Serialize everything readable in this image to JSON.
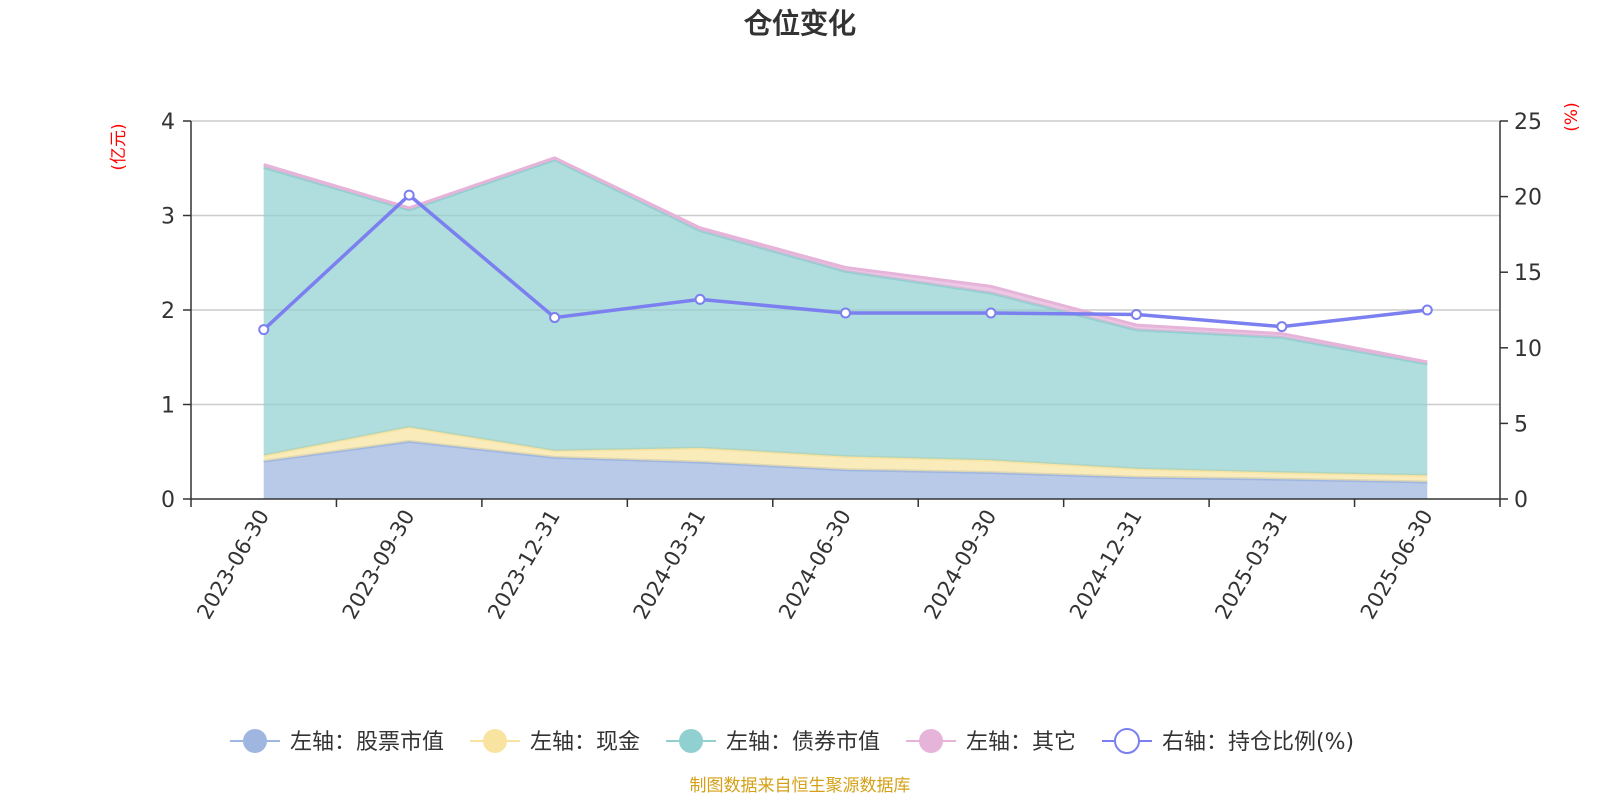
{
  "chart_data": {
    "type": "area",
    "title": "仓位变化",
    "left_axis_unit": "(亿元)",
    "right_axis_unit": "(%)",
    "categories": [
      "2023-06-30",
      "2023-09-30",
      "2023-12-31",
      "2024-03-31",
      "2024-06-30",
      "2024-09-30",
      "2024-12-31",
      "2025-03-31",
      "2025-06-30"
    ],
    "left_ylim": [
      0,
      4
    ],
    "left_yticks": [
      "0",
      "1",
      "2",
      "3",
      "4"
    ],
    "right_ylim": [
      0,
      25
    ],
    "right_yticks": [
      "0",
      "5",
      "10",
      "15",
      "20",
      "25"
    ],
    "grid": true,
    "legend_position": "bottom",
    "stacked": true,
    "series": [
      {
        "name": "左轴：股票市值",
        "axis": "left",
        "type": "area",
        "color": "#9eb6e0",
        "values": [
          0.4,
          0.61,
          0.44,
          0.39,
          0.31,
          0.28,
          0.23,
          0.21,
          0.18
        ]
      },
      {
        "name": "左轴：现金",
        "axis": "left",
        "type": "area",
        "color": "#f8e3a0",
        "values": [
          0.06,
          0.15,
          0.07,
          0.15,
          0.14,
          0.13,
          0.09,
          0.07,
          0.07
        ]
      },
      {
        "name": "左轴：债券市值",
        "axis": "left",
        "type": "area",
        "color": "#91d0d0",
        "values": [
          3.05,
          2.3,
          3.08,
          2.3,
          1.96,
          1.77,
          1.47,
          1.43,
          1.18
        ]
      },
      {
        "name": "左轴：其它",
        "axis": "left",
        "type": "area",
        "color": "#e6b3d9",
        "values": [
          0.03,
          0.02,
          0.02,
          0.03,
          0.04,
          0.07,
          0.05,
          0.04,
          0.02
        ]
      },
      {
        "name": "右轴：持仓比例(%)",
        "axis": "right",
        "type": "line",
        "color": "#7b7ff0",
        "values": [
          11.2,
          20.1,
          12.0,
          13.2,
          12.3,
          12.3,
          12.2,
          11.4,
          12.5
        ]
      }
    ],
    "source_note": "制图数据来自恒生聚源数据库"
  }
}
